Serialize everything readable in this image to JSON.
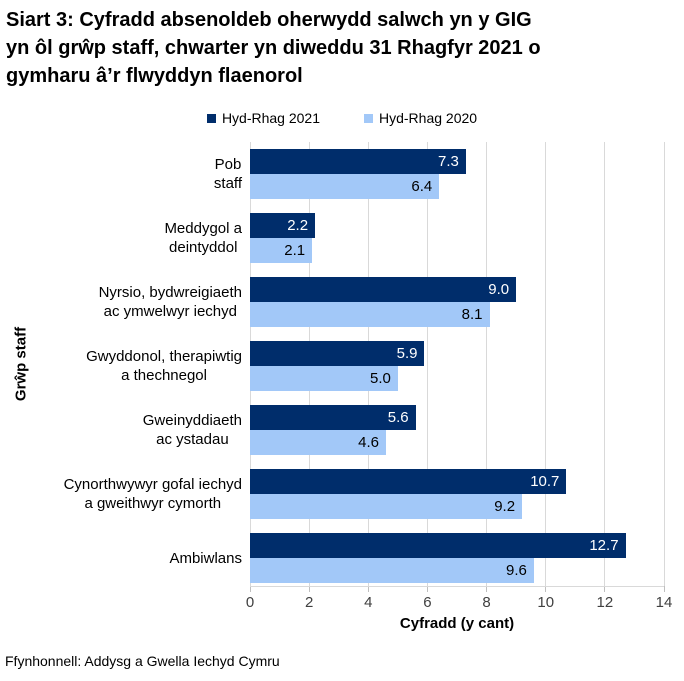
{
  "title": {
    "lines": [
      "Siart 3: Cyfradd absenoldeb oherwydd salwch yn y GIG",
      "yn ôl grŵp staff, chwarter yn diweddu 31 Rhagfyr 2021 o",
      "gymharu â’r flwyddyn flaenorol"
    ]
  },
  "legend": {
    "items": [
      {
        "label": "Hyd-Rhag 2021",
        "color": "#002d6b"
      },
      {
        "label": "Hyd-Rhag 2020",
        "color": "#a2c8f8"
      }
    ]
  },
  "chart_data": {
    "type": "bar",
    "orientation": "horizontal",
    "title": "Siart 3: Cyfradd absenoldeb oherwydd salwch yn y GIG yn ôl grŵp staff, chwarter yn diweddu 31 Rhagfyr 2021 o gymharu â’r flwyddyn flaenorol",
    "categories": [
      "Pob staff",
      "Meddygol a deintyddol",
      "Nyrsio, bydwreigiaeth ac ymwelwyr iechyd",
      "Gwyddonol, therapiwtig a thechnegol",
      "Gweinyddiaeth ac ystadau",
      "Cynorthwywyr gofal iechyd a gweithwyr cymorth",
      "Ambiwlans"
    ],
    "category_lines": [
      [
        "Pob",
        "staff"
      ],
      [
        "Meddygol a",
        "deintyddol"
      ],
      [
        "Nyrsio, bydwreigiaeth",
        "ac ymwelwyr iechyd"
      ],
      [
        "Gwyddonol, therapiwtig",
        "a thechnegol"
      ],
      [
        "Gweinyddiaeth",
        "ac ystadau"
      ],
      [
        "Cynorthwywyr gofal iechyd",
        "a gweithwyr cymorth"
      ],
      [
        "Ambiwlans"
      ]
    ],
    "series": [
      {
        "name": "Hyd-Rhag 2021",
        "color": "#002d6b",
        "label_color": "#ffffff",
        "values": [
          7.3,
          2.2,
          9.0,
          5.9,
          5.6,
          10.7,
          12.7
        ]
      },
      {
        "name": "Hyd-Rhag 2020",
        "color": "#a2c8f8",
        "label_color": "#000000",
        "values": [
          6.4,
          2.1,
          8.1,
          5.0,
          4.6,
          9.2,
          9.6
        ]
      }
    ],
    "xlabel": "Cyfradd (y cant)",
    "ylabel": "Grŵp staff",
    "xlim": [
      0,
      14
    ],
    "xticks": [
      0,
      2,
      4,
      6,
      8,
      10,
      12,
      14
    ],
    "grid": true,
    "legend_position": "top"
  },
  "source": "Ffynhonnell: Addysg a Gwella Iechyd Cymru"
}
